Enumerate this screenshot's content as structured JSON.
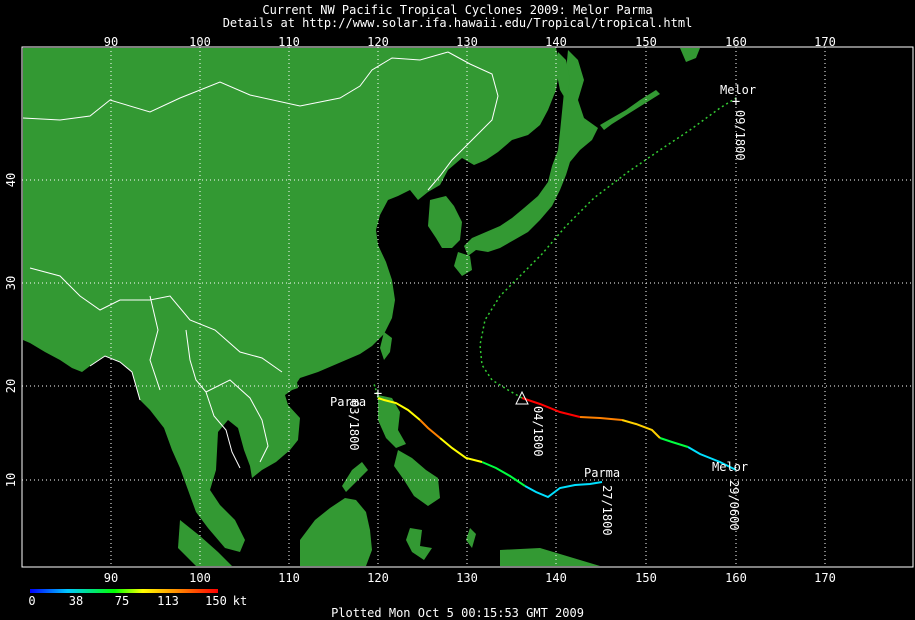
{
  "title": "Current NW Pacific Tropical Cyclones 2009: Melor Parma",
  "subtitle": "Details at http://www.solar.ifa.hawaii.edu/Tropical/tropical.html",
  "lon_ticks": [
    "90",
    "100",
    "110",
    "120",
    "130",
    "140",
    "150",
    "160",
    "170"
  ],
  "lat_ticks": [
    "10",
    "20",
    "30",
    "40"
  ],
  "legend": {
    "ticks": [
      "0",
      "38",
      "75",
      "113",
      "150"
    ],
    "unit": "kt",
    "colors": [
      "#0000ff",
      "#00c8ff",
      "#00ff00",
      "#ffff00",
      "#ff8000",
      "#ff0000"
    ]
  },
  "storms": [
    {
      "name": "Melor",
      "label_start": "29/0600",
      "label_end": "09/1800",
      "label_mid": "04/1800"
    },
    {
      "name": "Parma",
      "label_start": "27/1800",
      "label_end": "03/1800"
    }
  ],
  "footer": "Plotted Mon Oct 5 00:15:53 GMT 2009",
  "colors": {
    "land": "#339933",
    "ocean": "#000000",
    "grid": "#ffffff",
    "border": "#ffffff"
  }
}
